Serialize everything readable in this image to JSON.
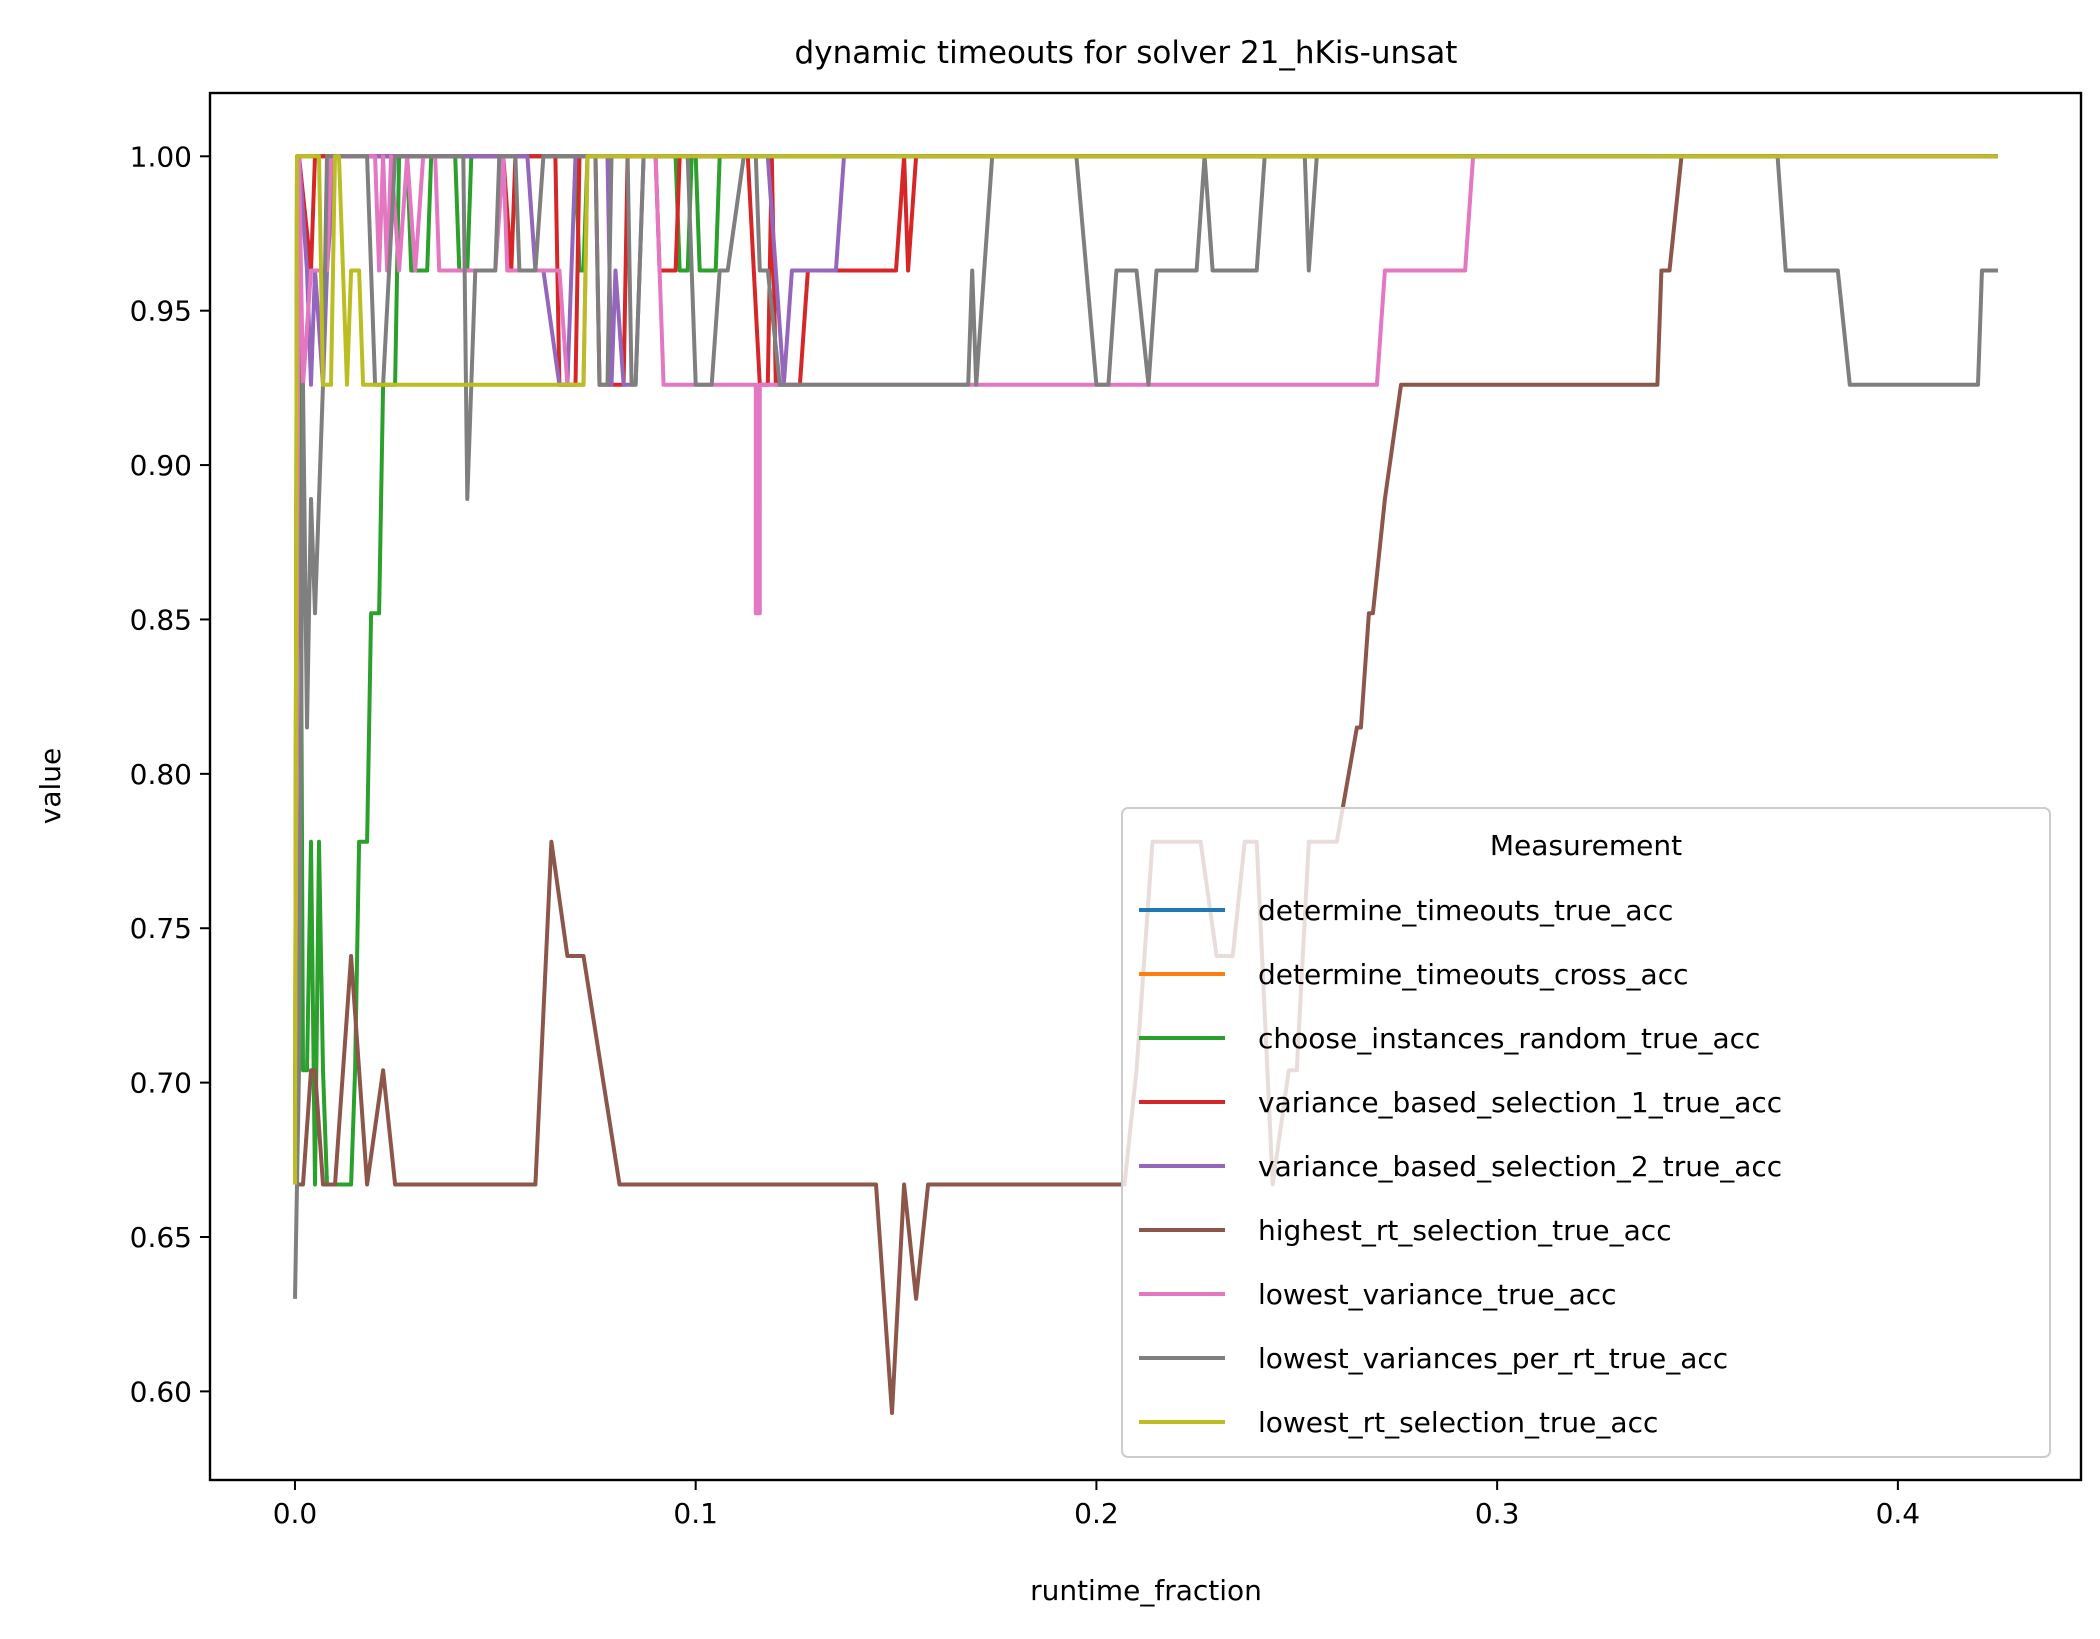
{
  "chart_data": {
    "type": "line",
    "title": "dynamic timeouts for solver 21_hKis-unsat",
    "xlabel": "runtime_fraction",
    "ylabel": "value",
    "xlim": [
      -0.0212,
      0.4457
    ],
    "ylim": [
      0.5713,
      1.0205
    ],
    "xticks": [
      0.0,
      0.1,
      0.2,
      0.3,
      0.4
    ],
    "xtick_labels": [
      "0.0",
      "0.1",
      "0.2",
      "0.3",
      "0.4"
    ],
    "yticks": [
      0.6,
      0.65,
      0.7,
      0.75,
      0.8,
      0.85,
      0.9,
      0.95,
      1.0
    ],
    "ytick_labels": [
      "0.60",
      "0.65",
      "0.70",
      "0.75",
      "0.80",
      "0.85",
      "0.90",
      "0.95",
      "1.00"
    ],
    "grid": false,
    "legend": {
      "title": "Measurement",
      "placement": "lower-right"
    },
    "series": [
      {
        "name": "determine_timeouts_true_acc",
        "color": "#1f77b4",
        "points": [
          [
            0.0,
            0.667
          ],
          [
            0.0005,
            1.0
          ],
          [
            0.425,
            1.0
          ]
        ]
      },
      {
        "name": "determine_timeouts_cross_acc",
        "color": "#ff7f0e",
        "points": [
          [
            0.0,
            0.667
          ],
          [
            0.0005,
            1.0
          ],
          [
            0.425,
            1.0
          ]
        ]
      },
      {
        "name": "choose_instances_random_true_acc",
        "color": "#2ca02c",
        "points": [
          [
            0.0,
            0.667
          ],
          [
            0.001,
            1.0
          ],
          [
            0.002,
            0.704
          ],
          [
            0.003,
            0.704
          ],
          [
            0.004,
            0.778
          ],
          [
            0.005,
            0.667
          ],
          [
            0.006,
            0.778
          ],
          [
            0.007,
            0.704
          ],
          [
            0.008,
            0.667
          ],
          [
            0.012,
            0.667
          ],
          [
            0.014,
            0.667
          ],
          [
            0.015,
            0.704
          ],
          [
            0.016,
            0.778
          ],
          [
            0.018,
            0.778
          ],
          [
            0.019,
            0.852
          ],
          [
            0.021,
            0.852
          ],
          [
            0.022,
            0.926
          ],
          [
            0.025,
            0.926
          ],
          [
            0.026,
            1.0
          ],
          [
            0.028,
            1.0
          ],
          [
            0.029,
            0.963
          ],
          [
            0.033,
            0.963
          ],
          [
            0.034,
            1.0
          ],
          [
            0.04,
            1.0
          ],
          [
            0.041,
            0.963
          ],
          [
            0.043,
            0.963
          ],
          [
            0.044,
            1.0
          ],
          [
            0.07,
            1.0
          ],
          [
            0.071,
            0.963
          ],
          [
            0.072,
            0.963
          ],
          [
            0.073,
            1.0
          ],
          [
            0.095,
            1.0
          ],
          [
            0.096,
            0.963
          ],
          [
            0.098,
            0.963
          ],
          [
            0.099,
            1.0
          ],
          [
            0.1,
            1.0
          ],
          [
            0.101,
            0.963
          ],
          [
            0.105,
            0.963
          ],
          [
            0.106,
            1.0
          ],
          [
            0.425,
            1.0
          ]
        ]
      },
      {
        "name": "variance_based_selection_1_true_acc",
        "color": "#d62728",
        "points": [
          [
            0.0,
            0.667
          ],
          [
            0.001,
            1.0
          ],
          [
            0.004,
            0.963
          ],
          [
            0.005,
            1.0
          ],
          [
            0.052,
            1.0
          ],
          [
            0.054,
            0.963
          ],
          [
            0.055,
            1.0
          ],
          [
            0.065,
            1.0
          ],
          [
            0.066,
            0.926
          ],
          [
            0.07,
            0.926
          ],
          [
            0.071,
            1.0
          ],
          [
            0.075,
            1.0
          ],
          [
            0.076,
            0.926
          ],
          [
            0.082,
            0.926
          ],
          [
            0.083,
            1.0
          ],
          [
            0.09,
            1.0
          ],
          [
            0.091,
            0.963
          ],
          [
            0.095,
            0.963
          ],
          [
            0.096,
            1.0
          ],
          [
            0.113,
            1.0
          ],
          [
            0.116,
            0.926
          ],
          [
            0.118,
            0.926
          ],
          [
            0.119,
            1.0
          ],
          [
            0.12,
            0.926
          ],
          [
            0.126,
            0.926
          ],
          [
            0.128,
            0.963
          ],
          [
            0.15,
            0.963
          ],
          [
            0.152,
            1.0
          ],
          [
            0.153,
            0.963
          ],
          [
            0.155,
            1.0
          ],
          [
            0.425,
            1.0
          ]
        ]
      },
      {
        "name": "variance_based_selection_2_true_acc",
        "color": "#9467bd",
        "points": [
          [
            0.0,
            0.667
          ],
          [
            0.001,
            1.0
          ],
          [
            0.003,
            0.963
          ],
          [
            0.004,
            0.926
          ],
          [
            0.005,
            0.963
          ],
          [
            0.007,
            0.926
          ],
          [
            0.008,
            0.963
          ],
          [
            0.01,
            1.0
          ],
          [
            0.058,
            1.0
          ],
          [
            0.06,
            0.963
          ],
          [
            0.062,
            0.963
          ],
          [
            0.066,
            0.926
          ],
          [
            0.068,
            0.926
          ],
          [
            0.07,
            1.0
          ],
          [
            0.078,
            1.0
          ],
          [
            0.079,
            0.926
          ],
          [
            0.08,
            0.963
          ],
          [
            0.082,
            0.926
          ],
          [
            0.085,
            0.926
          ],
          [
            0.087,
            1.0
          ],
          [
            0.118,
            1.0
          ],
          [
            0.12,
            0.963
          ],
          [
            0.122,
            0.926
          ],
          [
            0.124,
            0.963
          ],
          [
            0.135,
            0.963
          ],
          [
            0.137,
            1.0
          ],
          [
            0.425,
            1.0
          ]
        ]
      },
      {
        "name": "highest_rt_selection_true_acc",
        "color": "#8c564b",
        "points": [
          [
            0.0,
            0.667
          ],
          [
            0.002,
            0.667
          ],
          [
            0.004,
            0.704
          ],
          [
            0.005,
            0.704
          ],
          [
            0.007,
            0.667
          ],
          [
            0.01,
            0.667
          ],
          [
            0.014,
            0.741
          ],
          [
            0.016,
            0.704
          ],
          [
            0.018,
            0.667
          ],
          [
            0.022,
            0.704
          ],
          [
            0.025,
            0.667
          ],
          [
            0.06,
            0.667
          ],
          [
            0.064,
            0.778
          ],
          [
            0.068,
            0.741
          ],
          [
            0.072,
            0.741
          ],
          [
            0.081,
            0.667
          ],
          [
            0.145,
            0.667
          ],
          [
            0.149,
            0.593
          ],
          [
            0.152,
            0.667
          ],
          [
            0.155,
            0.63
          ],
          [
            0.158,
            0.667
          ],
          [
            0.207,
            0.667
          ],
          [
            0.21,
            0.704
          ],
          [
            0.214,
            0.778
          ],
          [
            0.226,
            0.778
          ],
          [
            0.23,
            0.741
          ],
          [
            0.234,
            0.741
          ],
          [
            0.237,
            0.778
          ],
          [
            0.24,
            0.778
          ],
          [
            0.244,
            0.667
          ],
          [
            0.248,
            0.704
          ],
          [
            0.25,
            0.704
          ],
          [
            0.253,
            0.778
          ],
          [
            0.26,
            0.778
          ],
          [
            0.265,
            0.815
          ],
          [
            0.266,
            0.815
          ],
          [
            0.268,
            0.852
          ],
          [
            0.269,
            0.852
          ],
          [
            0.272,
            0.889
          ],
          [
            0.276,
            0.926
          ],
          [
            0.34,
            0.926
          ],
          [
            0.341,
            0.963
          ],
          [
            0.343,
            0.963
          ],
          [
            0.346,
            1.0
          ],
          [
            0.425,
            1.0
          ]
        ]
      },
      {
        "name": "lowest_variance_true_acc",
        "color": "#e377c2",
        "points": [
          [
            0.0,
            0.667
          ],
          [
            0.001,
            1.0
          ],
          [
            0.002,
            0.926
          ],
          [
            0.004,
            0.963
          ],
          [
            0.008,
            0.963
          ],
          [
            0.009,
            1.0
          ],
          [
            0.02,
            1.0
          ],
          [
            0.021,
            0.963
          ],
          [
            0.022,
            1.0
          ],
          [
            0.023,
            0.963
          ],
          [
            0.024,
            1.0
          ],
          [
            0.026,
            0.963
          ],
          [
            0.028,
            1.0
          ],
          [
            0.03,
            0.963
          ],
          [
            0.032,
            1.0
          ],
          [
            0.035,
            1.0
          ],
          [
            0.036,
            0.963
          ],
          [
            0.05,
            0.963
          ],
          [
            0.052,
            1.0
          ],
          [
            0.053,
            0.963
          ],
          [
            0.066,
            0.963
          ],
          [
            0.068,
            0.926
          ],
          [
            0.072,
            0.926
          ],
          [
            0.073,
            1.0
          ],
          [
            0.09,
            1.0
          ],
          [
            0.092,
            0.926
          ],
          [
            0.115,
            0.926
          ],
          [
            0.115,
            0.852
          ],
          [
            0.116,
            0.852
          ],
          [
            0.116,
            0.926
          ],
          [
            0.27,
            0.926
          ],
          [
            0.272,
            0.963
          ],
          [
            0.292,
            0.963
          ],
          [
            0.294,
            1.0
          ],
          [
            0.425,
            1.0
          ]
        ]
      },
      {
        "name": "lowest_variances_per_rt_true_acc",
        "color": "#7f7f7f",
        "points": [
          [
            0.0,
            0.63
          ],
          [
            0.001,
            0.704
          ],
          [
            0.002,
            0.926
          ],
          [
            0.003,
            0.815
          ],
          [
            0.004,
            0.889
          ],
          [
            0.005,
            0.852
          ],
          [
            0.006,
            0.889
          ],
          [
            0.007,
            0.926
          ],
          [
            0.008,
            1.0
          ],
          [
            0.018,
            1.0
          ],
          [
            0.02,
            0.926
          ],
          [
            0.022,
            0.926
          ],
          [
            0.025,
            1.0
          ],
          [
            0.042,
            1.0
          ],
          [
            0.043,
            0.889
          ],
          [
            0.045,
            0.963
          ],
          [
            0.05,
            0.963
          ],
          [
            0.051,
            1.0
          ],
          [
            0.055,
            1.0
          ],
          [
            0.056,
            0.963
          ],
          [
            0.06,
            0.963
          ],
          [
            0.062,
            1.0
          ],
          [
            0.075,
            1.0
          ],
          [
            0.076,
            0.926
          ],
          [
            0.078,
            0.926
          ],
          [
            0.079,
            1.0
          ],
          [
            0.083,
            1.0
          ],
          [
            0.084,
            0.926
          ],
          [
            0.085,
            0.926
          ],
          [
            0.087,
            1.0
          ],
          [
            0.098,
            1.0
          ],
          [
            0.1,
            0.926
          ],
          [
            0.104,
            0.926
          ],
          [
            0.106,
            0.963
          ],
          [
            0.108,
            0.963
          ],
          [
            0.112,
            1.0
          ],
          [
            0.115,
            1.0
          ],
          [
            0.116,
            0.963
          ],
          [
            0.118,
            0.963
          ],
          [
            0.121,
            0.926
          ],
          [
            0.168,
            0.926
          ],
          [
            0.169,
            0.963
          ],
          [
            0.17,
            0.926
          ],
          [
            0.172,
            0.963
          ],
          [
            0.174,
            1.0
          ],
          [
            0.195,
            1.0
          ],
          [
            0.2,
            0.926
          ],
          [
            0.203,
            0.926
          ],
          [
            0.205,
            0.963
          ],
          [
            0.21,
            0.963
          ],
          [
            0.213,
            0.926
          ],
          [
            0.215,
            0.963
          ],
          [
            0.225,
            0.963
          ],
          [
            0.227,
            1.0
          ],
          [
            0.229,
            0.963
          ],
          [
            0.24,
            0.963
          ],
          [
            0.242,
            1.0
          ],
          [
            0.252,
            1.0
          ],
          [
            0.253,
            0.963
          ],
          [
            0.255,
            1.0
          ],
          [
            0.37,
            1.0
          ],
          [
            0.372,
            0.963
          ],
          [
            0.385,
            0.963
          ],
          [
            0.388,
            0.926
          ],
          [
            0.42,
            0.926
          ],
          [
            0.421,
            0.963
          ],
          [
            0.425,
            0.963
          ]
        ]
      },
      {
        "name": "lowest_rt_selection_true_acc",
        "color": "#bcbd22",
        "points": [
          [
            0.0,
            0.667
          ],
          [
            0.0005,
            1.0
          ],
          [
            0.006,
            1.0
          ],
          [
            0.007,
            0.926
          ],
          [
            0.009,
            0.926
          ],
          [
            0.01,
            1.0
          ],
          [
            0.011,
            1.0
          ],
          [
            0.012,
            0.963
          ],
          [
            0.013,
            0.926
          ],
          [
            0.014,
            0.963
          ],
          [
            0.016,
            0.963
          ],
          [
            0.017,
            0.926
          ],
          [
            0.072,
            0.926
          ],
          [
            0.073,
            1.0
          ],
          [
            0.425,
            1.0
          ]
        ]
      }
    ]
  }
}
